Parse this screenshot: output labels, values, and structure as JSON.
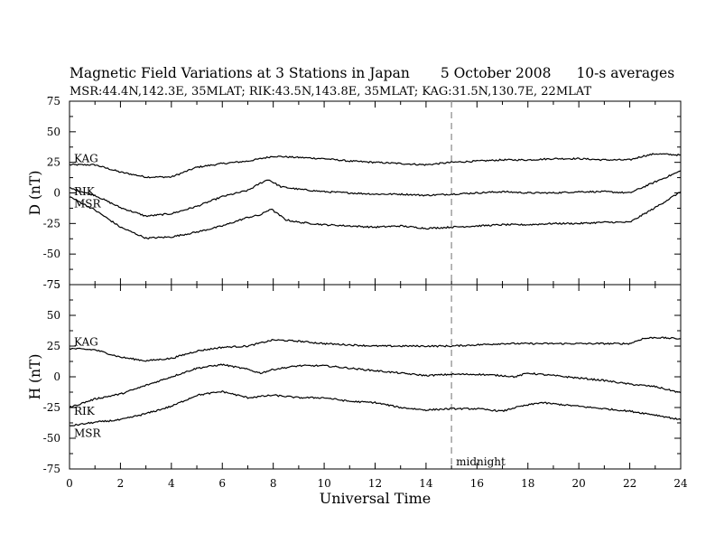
{
  "header": {
    "title": "Magnetic Field Variations at 3 Stations in Japan",
    "date": "5   October 2008",
    "averaging": "10-s averages",
    "stations": "MSR:44.4N,142.3E, 35MLAT;   RIK:43.5N,143.8E, 35MLAT;   KAG:31.5N,130.7E, 22MLAT"
  },
  "chart_data": [
    {
      "type": "line",
      "panel": "D",
      "ylabel": "D (nT)",
      "xlim": [
        0,
        24
      ],
      "ylim": [
        -75,
        75
      ],
      "yticks": [
        75,
        50,
        25,
        0,
        -25,
        -50,
        -75
      ],
      "xticks": [
        0,
        2,
        4,
        6,
        8,
        10,
        12,
        14,
        16,
        18,
        20,
        22,
        24
      ],
      "series": [
        {
          "name": "KAG",
          "x": [
            0,
            1,
            2,
            3,
            4,
            5,
            6,
            7,
            7.5,
            8,
            9,
            10,
            11,
            12,
            13,
            14,
            15,
            16,
            17,
            18,
            19,
            20,
            21,
            22,
            22.5,
            23,
            24
          ],
          "y": [
            23,
            23,
            17,
            13,
            13,
            21,
            24,
            26,
            28,
            30,
            29,
            28,
            26,
            25,
            24,
            23,
            25,
            26,
            27,
            27,
            28,
            28,
            27,
            27,
            30,
            32,
            31
          ]
        },
        {
          "name": "RIK",
          "x": [
            0,
            1,
            2,
            3,
            4,
            5,
            6,
            7,
            7.5,
            7.8,
            8.3,
            9,
            10,
            11,
            12,
            13,
            14,
            15,
            16,
            17,
            18,
            19,
            20,
            21,
            22,
            23,
            24
          ],
          "y": [
            4,
            -2,
            -12,
            -19,
            -17,
            -11,
            -3,
            2,
            8,
            11,
            5,
            3,
            1,
            0,
            -1,
            -1,
            -2,
            -1,
            0,
            1,
            0,
            0,
            1,
            1,
            0,
            9,
            18
          ]
        },
        {
          "name": "MSR",
          "x": [
            0,
            1,
            2,
            3,
            4,
            5,
            6,
            7,
            7.5,
            7.9,
            8.5,
            9,
            10,
            11,
            12,
            13,
            14,
            15,
            16,
            17,
            18,
            19,
            20,
            21,
            22,
            23,
            24
          ],
          "y": [
            -3,
            -14,
            -28,
            -37,
            -36,
            -32,
            -27,
            -20,
            -18,
            -13,
            -22,
            -24,
            -26,
            -27,
            -28,
            -27,
            -29,
            -28,
            -27,
            -26,
            -26,
            -25,
            -25,
            -24,
            -24,
            -12,
            1
          ]
        }
      ],
      "midline_at": 15
    },
    {
      "type": "line",
      "panel": "H",
      "ylabel": "H (nT)",
      "xlabel": "Universal Time",
      "xlim": [
        0,
        24
      ],
      "ylim": [
        -75,
        75
      ],
      "yticks": [
        75,
        50,
        25,
        0,
        -25,
        -50,
        -75
      ],
      "xticks": [
        0,
        2,
        4,
        6,
        8,
        10,
        12,
        14,
        16,
        18,
        20,
        22,
        24
      ],
      "series": [
        {
          "name": "KAG",
          "x": [
            0,
            1,
            2,
            3,
            4,
            5,
            6,
            7,
            8,
            9,
            10,
            11,
            12,
            13,
            14,
            15,
            16,
            17,
            18,
            19,
            20,
            21,
            22,
            22.5,
            23,
            24
          ],
          "y": [
            23,
            22,
            16,
            13,
            15,
            21,
            24,
            25,
            30,
            29,
            27,
            26,
            25,
            25,
            25,
            25,
            26,
            27,
            27,
            27,
            27,
            27,
            27,
            31,
            32,
            31
          ]
        },
        {
          "name": "RIK",
          "x": [
            0,
            1,
            2,
            3,
            4,
            5,
            6,
            7,
            7.5,
            8,
            9,
            10,
            11,
            12,
            13,
            14,
            15,
            16,
            17,
            17.5,
            18,
            19,
            20,
            21,
            22,
            23,
            24
          ],
          "y": [
            -25,
            -18,
            -14,
            -7,
            0,
            7,
            10,
            6,
            3,
            6,
            9,
            9,
            7,
            5,
            3,
            1,
            2,
            2,
            1,
            0,
            3,
            1,
            -1,
            -3,
            -6,
            -8,
            -13
          ]
        },
        {
          "name": "MSR",
          "x": [
            0,
            1,
            2,
            3,
            4,
            5,
            6,
            7,
            8,
            9,
            10,
            11,
            12,
            13,
            14,
            15,
            16,
            17,
            17.5,
            18,
            18.5,
            19,
            20,
            21,
            22,
            23,
            24
          ],
          "y": [
            -40,
            -37,
            -35,
            -30,
            -24,
            -15,
            -12,
            -17,
            -15,
            -17,
            -17,
            -20,
            -21,
            -25,
            -27,
            -26,
            -26,
            -28,
            -25,
            -23,
            -21,
            -22,
            -24,
            -26,
            -28,
            -31,
            -35
          ]
        }
      ],
      "annotation": "midnight",
      "midline_at": 15
    }
  ]
}
